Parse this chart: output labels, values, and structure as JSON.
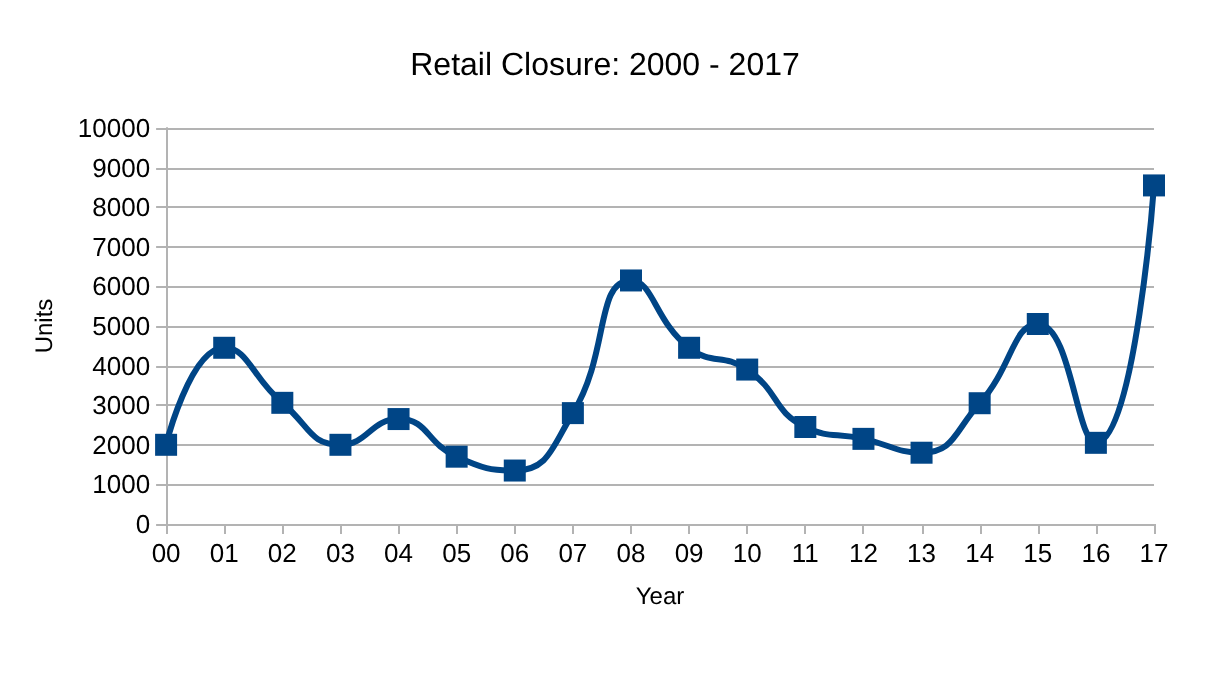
{
  "chart_data": {
    "type": "line",
    "title": "Retail Closure: 2000 - 2017",
    "xlabel": "Year",
    "ylabel": "Units",
    "categories": [
      "00",
      "01",
      "02",
      "03",
      "04",
      "05",
      "06",
      "07",
      "08",
      "09",
      "10",
      "11",
      "12",
      "13",
      "14",
      "15",
      "16",
      "17"
    ],
    "series": [
      {
        "color": "#004586",
        "values": [
          2000,
          4450,
          3060,
          2000,
          2650,
          1700,
          1350,
          2800,
          6150,
          4450,
          3900,
          2450,
          2150,
          1800,
          3050,
          5050,
          2050,
          8550
        ]
      }
    ],
    "ylim": [
      0,
      10000
    ],
    "yticks": [
      0,
      1000,
      2000,
      3000,
      4000,
      5000,
      6000,
      7000,
      8000,
      9000,
      10000
    ],
    "grid": "y",
    "marker": "square",
    "line_style": "solid"
  }
}
